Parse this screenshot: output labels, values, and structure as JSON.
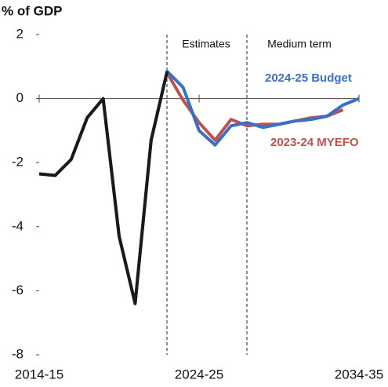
{
  "chart_data": {
    "type": "line",
    "ylabel": "% of GDP",
    "categories": [
      "2014-15",
      null,
      null,
      null,
      null,
      null,
      null,
      null,
      null,
      null,
      "2024-25",
      null,
      null,
      null,
      null,
      null,
      null,
      null,
      null,
      null,
      "2034-35"
    ],
    "series": [
      {
        "name": "2024-25 Budget",
        "color": "#3b6fc6",
        "values": [
          -2.35,
          -2.4,
          -1.9,
          -0.6,
          0.0,
          -4.3,
          -6.4,
          -1.3,
          0.85,
          0.35,
          -1.0,
          -1.45,
          -0.85,
          -0.75,
          -0.9,
          -0.8,
          -0.7,
          -0.65,
          -0.55,
          -0.2,
          0.0
        ]
      },
      {
        "name": "2023-24 MYEFO",
        "color": "#c0504d",
        "values": [
          null,
          null,
          null,
          null,
          null,
          null,
          null,
          null,
          0.8,
          -0.05,
          -0.75,
          -1.3,
          -0.65,
          -0.85,
          -0.8,
          -0.8,
          -0.7,
          -0.6,
          -0.55,
          -0.35,
          null
        ]
      },
      {
        "color": "#1a1a1a",
        "values": [
          -2.35,
          -2.4,
          -1.9,
          -0.6,
          0.0,
          -4.3,
          -6.4,
          -1.3,
          0.85,
          null,
          null,
          null,
          null,
          null,
          null,
          null,
          null,
          null,
          null,
          null,
          null
        ]
      }
    ],
    "annotations": [
      "Estimates",
      "Medium term"
    ],
    "ylim": [
      -8,
      2
    ],
    "yticks": [
      2,
      0,
      -2,
      -4,
      -6,
      -8
    ]
  }
}
